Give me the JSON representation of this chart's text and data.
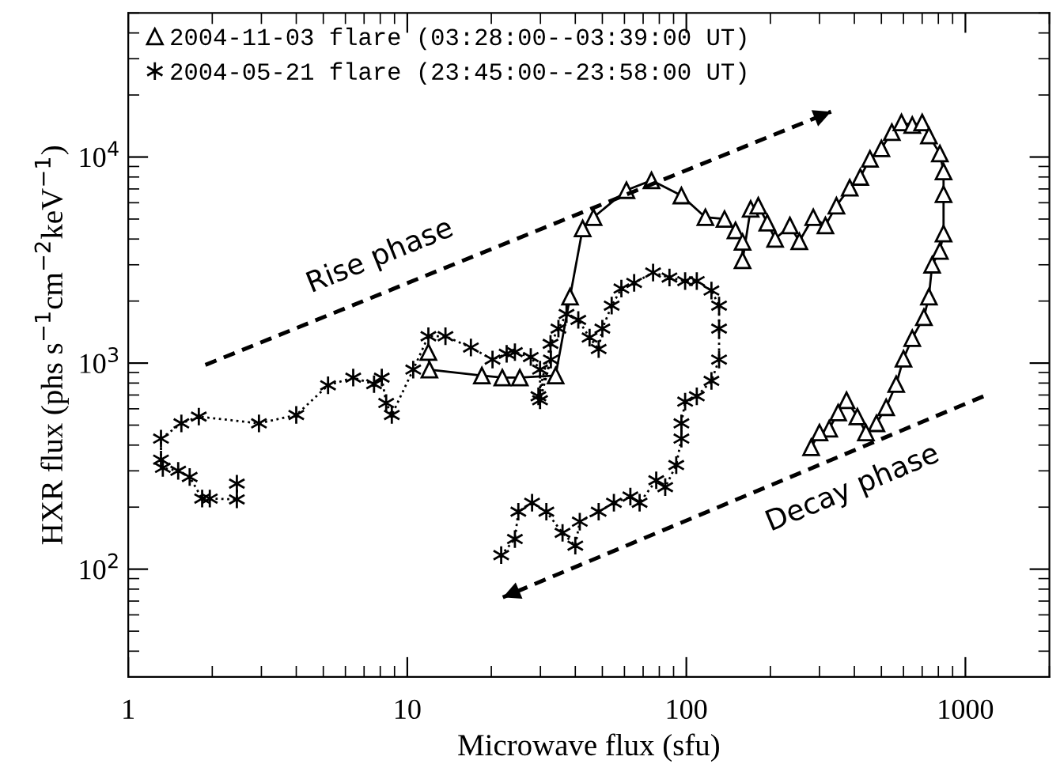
{
  "chart_data": {
    "type": "line",
    "xlabel": "Microwave flux (sfu)",
    "ylabel": "HXR flux (phs s$^{−1}$cm$^{−2}$keV$^{−1}$)",
    "log": "xy",
    "xlim": [
      1,
      2000
    ],
    "ylim": [
      30,
      50000
    ],
    "xticks": [
      1,
      10,
      100,
      1000
    ],
    "yticks": [
      {
        "value": 100,
        "label": "10$^{2}$"
      },
      {
        "value": 1000,
        "label": "10$^{3}$"
      },
      {
        "value": 10000,
        "label": "10$^{4}$"
      }
    ],
    "grid": false,
    "legend": "top left",
    "series": [
      {
        "name": "2004-11-03 flare (03:28:00--03:39:00 UT)",
        "color": "#000000",
        "marker": "triangle",
        "line_style": "solid",
        "x": [
          11.9,
          12,
          18.5,
          21.9,
          25.3,
          34,
          38.3,
          42.5,
          46.5,
          61,
          75,
          96,
          117,
          137,
          150,
          159,
          159,
          170,
          181,
          195,
          208,
          235,
          254,
          285,
          315,
          345,
          385,
          420,
          455,
          500,
          545,
          590,
          645,
          700,
          740,
          810,
          835,
          835,
          835,
          810,
          760,
          740,
          710,
          645,
          600,
          565,
          520,
          480,
          440,
          410,
          375,
          350,
          325,
          300,
          280
        ],
        "values": [
          1130,
          930,
          870,
          850,
          850,
          870,
          2100,
          4500,
          5100,
          6900,
          7700,
          6500,
          5100,
          5000,
          4400,
          3870,
          3150,
          5600,
          5800,
          4800,
          4000,
          4650,
          3900,
          5100,
          4650,
          5800,
          7100,
          8000,
          9800,
          11000,
          13200,
          14700,
          14300,
          14700,
          12700,
          10400,
          8500,
          6600,
          4250,
          3500,
          3000,
          2100,
          1670,
          1320,
          1050,
          790,
          610,
          510,
          460,
          550,
          660,
          575,
          480,
          460,
          390
        ]
      },
      {
        "name": "2004-05-21 flare (23:45:00--23:58:00 UT)",
        "color": "#000000",
        "marker": "cross",
        "line_style": "dotted",
        "x": [
          2.45,
          2.45,
          1.96,
          1.84,
          1.66,
          1.51,
          1.33,
          1.31,
          1.31,
          1.55,
          1.79,
          2.94,
          4.0,
          5.2,
          6.4,
          7.6,
          8.1,
          8.4,
          8.8,
          10.5,
          11.9,
          13.7,
          16.9,
          20.2,
          22.7,
          24.3,
          27.7,
          29.9,
          29.9,
          32.7,
          29.5,
          32.6,
          34.8,
          37.2,
          41,
          45,
          48.5,
          50,
          54,
          58.5,
          65,
          76,
          87,
          99,
          109,
          123,
          131,
          131,
          131,
          123,
          109,
          99,
          96,
          96,
          92,
          84,
          78,
          68,
          63,
          55,
          48.5,
          41.5,
          40,
          36,
          31.5,
          28,
          25,
          24.3,
          21.7
        ],
        "values": [
          260,
          218,
          220,
          220,
          280,
          300,
          310,
          340,
          430,
          510,
          550,
          510,
          560,
          780,
          850,
          790,
          850,
          640,
          560,
          930,
          1350,
          1350,
          1190,
          1040,
          1110,
          1130,
          1070,
          930,
          660,
          1040,
          690,
          1240,
          1470,
          1730,
          1620,
          1330,
          1170,
          1470,
          1900,
          2300,
          2450,
          2750,
          2600,
          2500,
          2500,
          2250,
          1900,
          1470,
          1040,
          820,
          690,
          650,
          510,
          430,
          320,
          250,
          270,
          210,
          225,
          210,
          190,
          170,
          130,
          150,
          190,
          210,
          190,
          140,
          117
        ]
      },
      {
        "color": "#000000",
        "marker": "none",
        "line_style": "dashed",
        "x": [
          1.89,
          330
        ],
        "values": [
          980,
          16600
        ]
      },
      {
        "color": "#000000",
        "marker": "none",
        "line_style": "dashed",
        "x": [
          1160,
          22
        ],
        "values": [
          690,
          73
        ]
      }
    ],
    "annotations": [
      "Rise phase",
      "Decay phase"
    ]
  }
}
